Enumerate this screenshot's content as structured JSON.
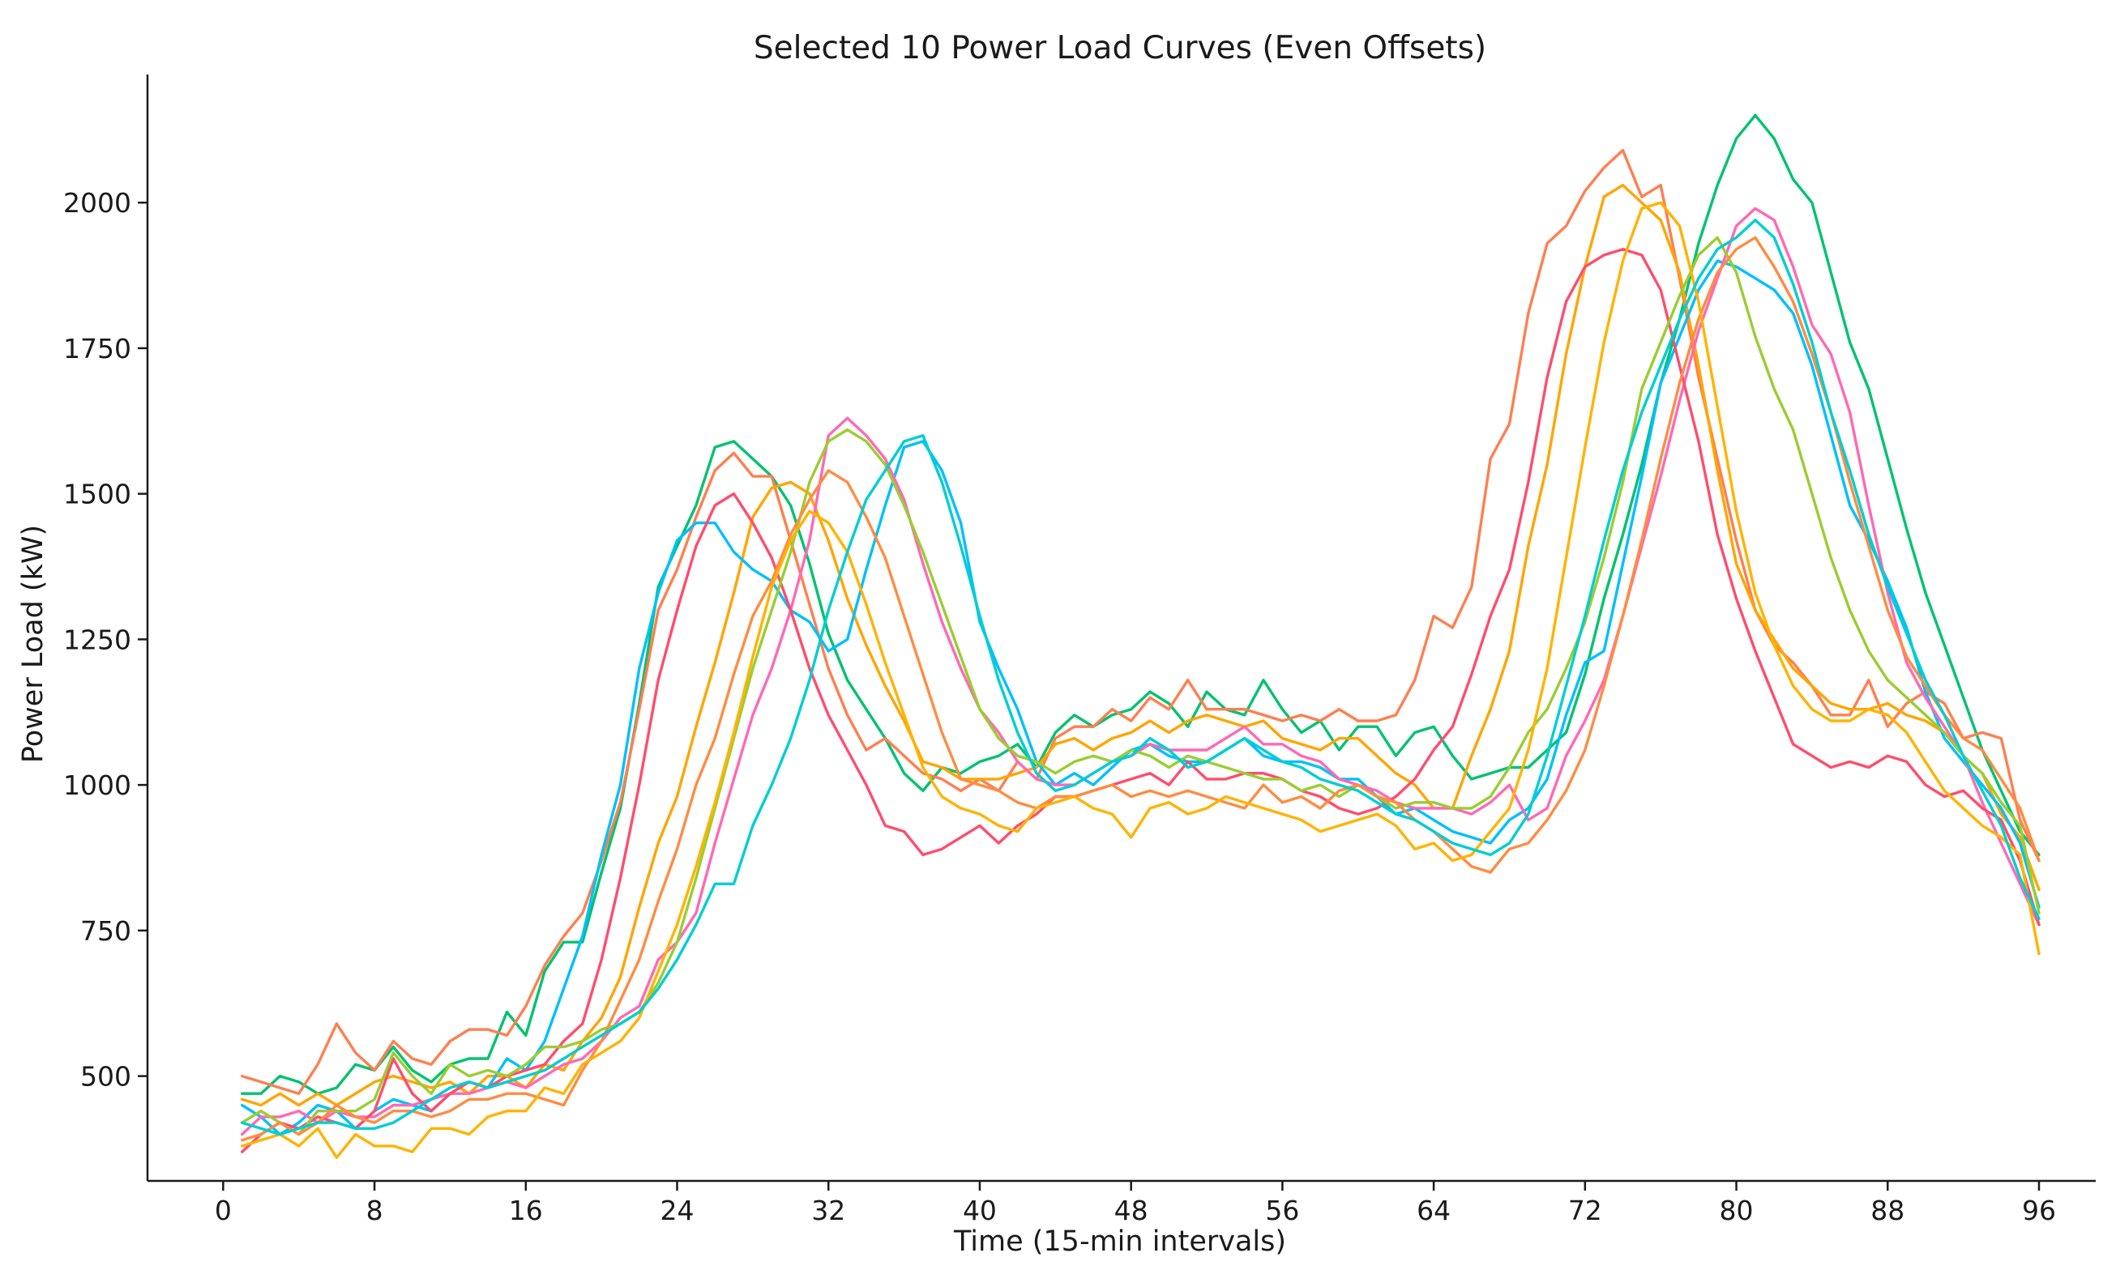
{
  "chart_data": {
    "type": "line",
    "title": "Selected 10 Power Load Curves (Even Offsets)",
    "xlabel": "Time (15-min intervals)",
    "ylabel": "Power Load (kW)",
    "xlim": [
      -4,
      99
    ],
    "ylim": [
      320,
      2220
    ],
    "xticks": [
      0,
      8,
      16,
      24,
      32,
      40,
      48,
      56,
      64,
      72,
      80,
      88,
      96
    ],
    "yticks": [
      500,
      750,
      1000,
      1250,
      1500,
      1750,
      2000
    ],
    "grid": false,
    "legend": "none",
    "x_start": 1,
    "series": [
      {
        "color": "#00c270",
        "values": [
          470,
          470,
          500,
          490,
          470,
          480,
          520,
          510,
          550,
          510,
          490,
          520,
          530,
          530,
          610,
          570,
          680,
          730,
          730,
          850,
          960,
          1140,
          1340,
          1410,
          1480,
          1580,
          1590,
          1560,
          1530,
          1480,
          1380,
          1260,
          1180,
          1130,
          1080,
          1020,
          990,
          1030,
          1020,
          1040,
          1050,
          1070,
          1030,
          1090,
          1120,
          1100,
          1120,
          1130,
          1160,
          1140,
          1100,
          1160,
          1130,
          1120,
          1180,
          1130,
          1090,
          1110,
          1060,
          1100,
          1100,
          1050,
          1090,
          1100,
          1050,
          1010,
          1020,
          1030,
          1030,
          1060,
          1090,
          1190,
          1320,
          1430,
          1550,
          1690,
          1800,
          1930,
          2030,
          2110,
          2150,
          2110,
          2040,
          2000,
          1880,
          1760,
          1680,
          1560,
          1440,
          1330,
          1240,
          1150,
          1060,
          990,
          920,
          880
        ]
      },
      {
        "color": "#ff7f50",
        "values": [
          500,
          490,
          480,
          470,
          520,
          590,
          540,
          510,
          560,
          530,
          520,
          560,
          580,
          580,
          570,
          620,
          690,
          740,
          780,
          870,
          970,
          1130,
          1300,
          1370,
          1460,
          1540,
          1570,
          1530,
          1530,
          1420,
          1310,
          1200,
          1120,
          1060,
          1080,
          1050,
          1020,
          1010,
          990,
          1010,
          990,
          1040,
          1010,
          1080,
          1100,
          1100,
          1130,
          1110,
          1150,
          1130,
          1180,
          1130,
          1130,
          1130,
          1120,
          1110,
          1120,
          1110,
          1130,
          1110,
          1110,
          1120,
          1180,
          1290,
          1270,
          1340,
          1560,
          1620,
          1810,
          1930,
          1960,
          2020,
          2060,
          2090,
          2010,
          2030,
          1870,
          1700,
          1560,
          1420,
          1300,
          1240,
          1210,
          1170,
          1120,
          1120,
          1180,
          1100,
          1140,
          1160,
          1140,
          1080,
          1090,
          1080,
          940,
          870
        ]
      },
      {
        "color": "#ffa500",
        "values": [
          460,
          450,
          470,
          450,
          470,
          450,
          470,
          490,
          500,
          490,
          480,
          490,
          470,
          500,
          500,
          480,
          520,
          510,
          560,
          600,
          670,
          790,
          900,
          980,
          1100,
          1210,
          1330,
          1460,
          1510,
          1520,
          1500,
          1420,
          1320,
          1240,
          1170,
          1110,
          1040,
          1030,
          1010,
          1010,
          1010,
          1020,
          1030,
          1070,
          1080,
          1060,
          1080,
          1090,
          1110,
          1090,
          1110,
          1120,
          1110,
          1100,
          1110,
          1080,
          1070,
          1060,
          1080,
          1080,
          1050,
          1020,
          1000,
          960,
          960,
          1050,
          1130,
          1230,
          1410,
          1550,
          1740,
          1890,
          2010,
          2030,
          2000,
          1970,
          1880,
          1720,
          1540,
          1380,
          1300,
          1250,
          1200,
          1170,
          1140,
          1130,
          1130,
          1140,
          1120,
          1110,
          1090,
          1050,
          1020,
          950,
          910,
          820
        ]
      },
      {
        "color": "#00bfff",
        "values": [
          450,
          430,
          400,
          420,
          450,
          440,
          410,
          440,
          460,
          450,
          440,
          470,
          490,
          480,
          530,
          510,
          560,
          650,
          740,
          880,
          1000,
          1200,
          1330,
          1420,
          1450,
          1450,
          1400,
          1370,
          1350,
          1300,
          1280,
          1230,
          1250,
          1370,
          1480,
          1580,
          1590,
          1540,
          1450,
          1280,
          1200,
          1130,
          1040,
          1000,
          1020,
          1000,
          1030,
          1060,
          1070,
          1050,
          1040,
          1040,
          1060,
          1080,
          1050,
          1040,
          1040,
          1030,
          1010,
          1010,
          980,
          950,
          960,
          940,
          920,
          910,
          900,
          940,
          960,
          1010,
          1120,
          1210,
          1230,
          1380,
          1530,
          1690,
          1770,
          1850,
          1900,
          1890,
          1870,
          1850,
          1810,
          1720,
          1600,
          1480,
          1420,
          1350,
          1270,
          1160,
          1080,
          1040,
          1000,
          960,
          900,
          790
        ]
      },
      {
        "color": "#ff69b4",
        "values": [
          400,
          430,
          430,
          440,
          420,
          440,
          430,
          430,
          450,
          450,
          460,
          470,
          470,
          480,
          490,
          480,
          500,
          520,
          530,
          560,
          600,
          620,
          700,
          730,
          780,
          900,
          1010,
          1120,
          1200,
          1300,
          1420,
          1600,
          1630,
          1600,
          1560,
          1490,
          1380,
          1280,
          1200,
          1130,
          1090,
          1040,
          1010,
          1000,
          1000,
          1020,
          1040,
          1050,
          1070,
          1060,
          1060,
          1060,
          1080,
          1100,
          1070,
          1070,
          1050,
          1040,
          1010,
          1000,
          990,
          970,
          960,
          960,
          960,
          950,
          970,
          1000,
          940,
          960,
          1050,
          1110,
          1180,
          1290,
          1410,
          1530,
          1660,
          1780,
          1870,
          1960,
          1990,
          1970,
          1890,
          1790,
          1740,
          1640,
          1480,
          1330,
          1210,
          1150,
          1100,
          1050,
          970,
          900,
          830,
          760
        ]
      },
      {
        "color": "#ff4d6d",
        "values": [
          370,
          400,
          420,
          410,
          430,
          420,
          410,
          440,
          530,
          470,
          440,
          470,
          490,
          480,
          500,
          510,
          520,
          560,
          590,
          700,
          840,
          1000,
          1180,
          1300,
          1410,
          1480,
          1500,
          1450,
          1390,
          1300,
          1200,
          1120,
          1060,
          1000,
          930,
          920,
          880,
          890,
          910,
          930,
          900,
          930,
          950,
          980,
          980,
          990,
          1000,
          1010,
          1020,
          1000,
          1040,
          1010,
          1010,
          1020,
          1020,
          1010,
          990,
          980,
          960,
          950,
          960,
          980,
          1010,
          1060,
          1100,
          1190,
          1290,
          1370,
          1520,
          1700,
          1830,
          1890,
          1910,
          1920,
          1910,
          1850,
          1720,
          1590,
          1430,
          1320,
          1230,
          1150,
          1070,
          1050,
          1030,
          1040,
          1030,
          1050,
          1040,
          1000,
          980,
          990,
          960,
          940,
          870,
          760
        ]
      },
      {
        "color": "#9acd32",
        "values": [
          420,
          440,
          420,
          400,
          440,
          440,
          440,
          460,
          540,
          500,
          470,
          520,
          500,
          510,
          500,
          520,
          550,
          550,
          560,
          580,
          590,
          610,
          660,
          730,
          840,
          960,
          1080,
          1200,
          1300,
          1400,
          1520,
          1590,
          1610,
          1590,
          1550,
          1480,
          1400,
          1310,
          1220,
          1130,
          1080,
          1050,
          1040,
          1020,
          1040,
          1050,
          1040,
          1060,
          1050,
          1030,
          1050,
          1040,
          1030,
          1020,
          1010,
          1010,
          990,
          1000,
          980,
          1000,
          980,
          960,
          970,
          970,
          960,
          960,
          980,
          1030,
          1090,
          1130,
          1200,
          1280,
          1390,
          1520,
          1680,
          1760,
          1840,
          1910,
          1940,
          1880,
          1770,
          1680,
          1610,
          1500,
          1390,
          1300,
          1230,
          1180,
          1150,
          1120,
          1090,
          1050,
          1020,
          970,
          930,
          780
        ]
      },
      {
        "color": "#ff8c42",
        "values": [
          390,
          400,
          420,
          400,
          420,
          450,
          430,
          420,
          440,
          440,
          430,
          440,
          460,
          460,
          470,
          470,
          460,
          450,
          510,
          560,
          630,
          700,
          800,
          890,
          1000,
          1080,
          1190,
          1290,
          1350,
          1430,
          1490,
          1540,
          1520,
          1460,
          1390,
          1290,
          1190,
          1090,
          1010,
          1000,
          990,
          970,
          960,
          980,
          980,
          990,
          1000,
          980,
          990,
          980,
          990,
          980,
          970,
          960,
          1000,
          970,
          980,
          960,
          990,
          1000,
          980,
          970,
          940,
          920,
          890,
          860,
          850,
          890,
          900,
          940,
          990,
          1060,
          1170,
          1290,
          1420,
          1560,
          1690,
          1800,
          1880,
          1920,
          1940,
          1890,
          1830,
          1740,
          1640,
          1520,
          1410,
          1300,
          1220,
          1170,
          1120,
          1080,
          1060,
          1010,
          960,
          870
        ]
      },
      {
        "color": "#ffb300",
        "values": [
          380,
          390,
          400,
          380,
          410,
          360,
          400,
          380,
          380,
          370,
          410,
          410,
          400,
          430,
          440,
          440,
          480,
          470,
          520,
          540,
          560,
          600,
          680,
          760,
          860,
          970,
          1090,
          1220,
          1340,
          1420,
          1470,
          1450,
          1400,
          1310,
          1210,
          1120,
          1030,
          980,
          960,
          950,
          930,
          920,
          960,
          970,
          980,
          960,
          950,
          910,
          960,
          970,
          950,
          960,
          980,
          970,
          960,
          950,
          940,
          920,
          930,
          940,
          950,
          930,
          890,
          900,
          870,
          880,
          920,
          960,
          1060,
          1200,
          1390,
          1580,
          1760,
          1900,
          1990,
          2000,
          1960,
          1830,
          1650,
          1470,
          1330,
          1240,
          1170,
          1130,
          1110,
          1110,
          1130,
          1120,
          1090,
          1040,
          990,
          960,
          930,
          910,
          880,
          710
        ]
      },
      {
        "color": "#00ced1",
        "values": [
          420,
          410,
          400,
          410,
          420,
          420,
          410,
          410,
          420,
          440,
          460,
          480,
          490,
          480,
          490,
          500,
          510,
          530,
          550,
          570,
          590,
          610,
          650,
          700,
          760,
          830,
          830,
          930,
          1000,
          1080,
          1180,
          1300,
          1400,
          1490,
          1540,
          1590,
          1600,
          1520,
          1410,
          1290,
          1180,
          1090,
          1020,
          990,
          1000,
          1020,
          1040,
          1050,
          1080,
          1060,
          1030,
          1040,
          1060,
          1080,
          1060,
          1040,
          1030,
          1010,
          1000,
          990,
          970,
          950,
          940,
          920,
          900,
          890,
          880,
          900,
          950,
          1050,
          1170,
          1290,
          1420,
          1540,
          1640,
          1720,
          1800,
          1870,
          1920,
          1940,
          1970,
          1940,
          1860,
          1760,
          1640,
          1540,
          1430,
          1340,
          1260,
          1180,
          1120,
          1050,
          990,
          930,
          840,
          770
        ]
      }
    ]
  }
}
